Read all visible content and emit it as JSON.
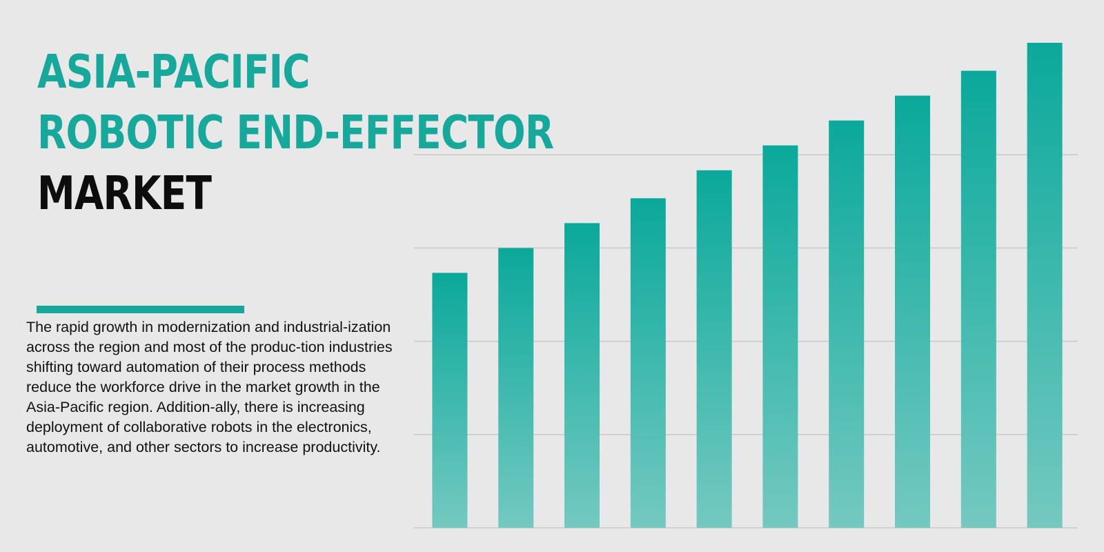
{
  "title": {
    "line1": "ASIA-PACIFIC",
    "line2": "ROBOTIC END-EFFECTOR",
    "line3": "MARKET"
  },
  "description": "The rapid growth in modernization and industrial-ization across the region and most of the produc-tion industries shifting toward automation of their process methods reduce the workforce drive in the market growth in the Asia-Pacific region. Addition-ally, there is increasing deployment of collaborative robots in the electronics, automotive, and other sectors to increase productivity.",
  "colors": {
    "accent": "#17a89c",
    "title_dark": "#0d0d0d",
    "bar_top": "#0aa99b",
    "bar_bottom": "#74c9c0",
    "gridline": "#c9c9c9",
    "background": "#e8e8e8"
  },
  "chart_data": {
    "type": "bar",
    "values": [
      4.1,
      4.5,
      4.9,
      5.3,
      5.75,
      6.15,
      6.55,
      6.95,
      7.35,
      7.8
    ],
    "ylim": [
      0,
      7.8
    ],
    "grid": true,
    "gridline_values": [
      0,
      1.5,
      3.0,
      4.5,
      6.0
    ]
  }
}
